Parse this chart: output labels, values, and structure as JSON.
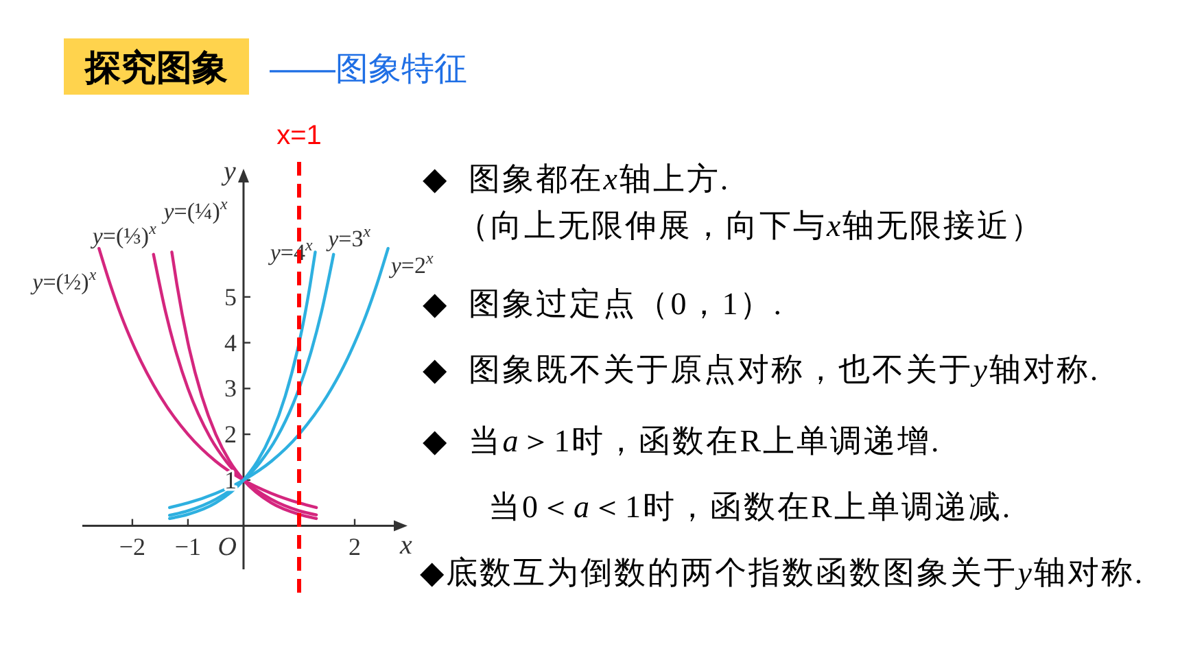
{
  "chart_data": [
    {
      "type": "line",
      "title": "探究图象",
      "subtitle": "——图象特征",
      "xlabel": "x",
      "ylabel": "y",
      "xlim": [
        -2.9,
        2.95
      ],
      "ylim": [
        -0.95,
        7.8
      ],
      "xticks": [
        {
          "value": -2,
          "label": "−2"
        },
        {
          "value": -1,
          "label": "−1"
        },
        {
          "value": 1,
          "label": null
        },
        2
      ],
      "yticks": [
        1,
        2,
        3,
        4,
        5
      ],
      "series": [
        {
          "name": "y=(½)$^{x}$",
          "color": "#d4267e",
          "x": [
            -2.6,
            -2.4,
            -2.2,
            -2,
            -1.5,
            -1,
            -0.5,
            0,
            0.5,
            1,
            1.31
          ],
          "values": [
            6.06,
            5.28,
            4.59,
            4,
            2.83,
            2,
            1.41,
            1,
            0.71,
            0.5,
            0.4
          ]
        },
        {
          "name": "y=(⅓)$^{x}$",
          "color": "#d4267e",
          "x": [
            -1.62,
            -1.4,
            -1.2,
            -1,
            -0.6,
            -0.3,
            0,
            0.5,
            1,
            1.31
          ],
          "values": [
            5.93,
            4.66,
            3.74,
            3,
            1.93,
            1.39,
            1,
            0.58,
            0.33,
            0.24
          ]
        },
        {
          "name": "y=(¼)$^{x}$",
          "color": "#d4267e",
          "x": [
            -1.29,
            -1.2,
            -1,
            -0.75,
            -0.5,
            -0.25,
            0,
            0.5,
            1,
            1.31
          ],
          "values": [
            5.98,
            5.28,
            4,
            2.83,
            2,
            1.41,
            1,
            0.5,
            0.25,
            0.16
          ]
        },
        {
          "name": "y=4$^{x}$",
          "color": "#2eb0e0",
          "x": [
            -1.33,
            -1,
            -0.5,
            0,
            0.25,
            0.5,
            0.75,
            1,
            1.1,
            1.2,
            1.29
          ],
          "values": [
            0.16,
            0.25,
            0.5,
            1,
            1.41,
            2,
            2.83,
            4,
            4.59,
            5.28,
            5.98
          ]
        },
        {
          "name": "y=3$^{x}$",
          "color": "#2eb0e0",
          "x": [
            -1.33,
            -1,
            -0.5,
            0,
            0.3,
            0.6,
            0.9,
            1,
            1.2,
            1.4,
            1.62
          ],
          "values": [
            0.23,
            0.33,
            0.58,
            1,
            1.39,
            1.93,
            2.69,
            3,
            3.74,
            4.66,
            5.93
          ]
        },
        {
          "name": "y=2$^{x}$",
          "color": "#2eb0e0",
          "x": [
            -1.33,
            -1,
            -0.5,
            0,
            0.5,
            1,
            1.5,
            1.8,
            2,
            2.2,
            2.4,
            2.6
          ],
          "values": [
            0.4,
            0.5,
            0.71,
            1,
            1.41,
            2,
            2.83,
            3.48,
            4,
            4.59,
            5.28,
            6.06
          ]
        }
      ],
      "ref_lines": [
        {
          "axis": "x",
          "value": 1,
          "label": "x=1",
          "color": "#ff0000",
          "line_style": "dashed"
        }
      ],
      "annotations": [
        "O"
      ]
    },
    {
      "type": "other",
      "annotations": [
        "◆  图象都在x轴上方.",
        "（向上无限伸展，向下与x轴无限接近）",
        "◆  图象过定点（0，1）.",
        "◆  图象既不关于原点对称，也不关于y轴对称.",
        "◆  当a＞1时，函数在R上单调递增.",
        "当0＜a＜1时，函数在R上单调递减.",
        "◆底数互为倒数的两个指数函数图象关于y轴对称."
      ]
    }
  ]
}
